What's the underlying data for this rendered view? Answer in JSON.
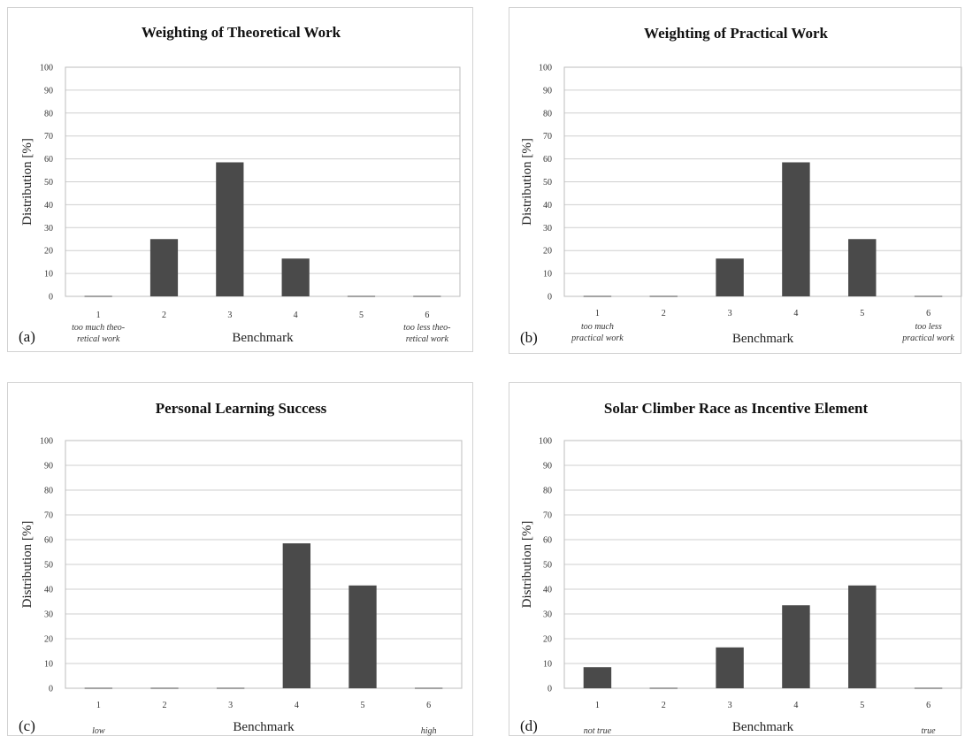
{
  "chart_data": [
    {
      "type": "bar",
      "panel": "(a)",
      "title": "Weighting of Theoretical Work",
      "xlabel": "Benchmark",
      "ylabel": "Distribution [%]",
      "categories": [
        "1",
        "2",
        "3",
        "4",
        "5",
        "6"
      ],
      "values": [
        0,
        25,
        58.5,
        16.5,
        0,
        0
      ],
      "ylim": [
        0,
        100
      ],
      "yticks": [
        "0",
        "10",
        "20",
        "30",
        "40",
        "50",
        "60",
        "70",
        "80",
        "90",
        "100"
      ],
      "grid": true,
      "low_note": [
        "too much theo-",
        "retical work"
      ],
      "high_note": [
        "too less theo-",
        "retical work"
      ]
    },
    {
      "type": "bar",
      "panel": "(b)",
      "title": "Weighting of Practical Work",
      "xlabel": "Benchmark",
      "ylabel": "Distribution [%]",
      "categories": [
        "1",
        "2",
        "3",
        "4",
        "5",
        "6"
      ],
      "values": [
        0,
        0,
        16.5,
        58.5,
        25,
        0
      ],
      "ylim": [
        0,
        100
      ],
      "yticks": [
        "0",
        "10",
        "20",
        "30",
        "40",
        "50",
        "60",
        "70",
        "80",
        "90",
        "100"
      ],
      "grid": true,
      "low_note": [
        "too much",
        "practical work"
      ],
      "high_note": [
        "too less",
        "practical work"
      ]
    },
    {
      "type": "bar",
      "panel": "(c)",
      "title": "Personal Learning Success",
      "xlabel": "Benchmark",
      "ylabel": "Distribution [%]",
      "categories": [
        "1",
        "2",
        "3",
        "4",
        "5",
        "6"
      ],
      "values": [
        0,
        0,
        0,
        58.5,
        41.5,
        0
      ],
      "ylim": [
        0,
        100
      ],
      "yticks": [
        "0",
        "10",
        "20",
        "30",
        "40",
        "50",
        "60",
        "70",
        "80",
        "90",
        "100"
      ],
      "grid": true,
      "low_note": [
        "low"
      ],
      "high_note": [
        "high"
      ]
    },
    {
      "type": "bar",
      "panel": "(d)",
      "title": "Solar Climber Race as Incentive Element",
      "xlabel": "Benchmark",
      "ylabel": "Distribution [%]",
      "categories": [
        "1",
        "2",
        "3",
        "4",
        "5",
        "6"
      ],
      "values": [
        8.5,
        0,
        16.5,
        33.5,
        41.5,
        0
      ],
      "ylim": [
        0,
        100
      ],
      "yticks": [
        "0",
        "10",
        "20",
        "30",
        "40",
        "50",
        "60",
        "70",
        "80",
        "90",
        "100"
      ],
      "grid": true,
      "low_note": [
        "not true"
      ],
      "high_note": [
        "true"
      ]
    }
  ]
}
